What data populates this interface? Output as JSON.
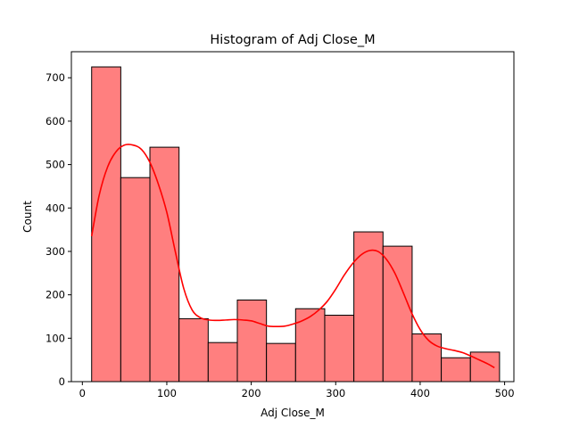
{
  "chart_data": {
    "type": "bar",
    "title": "Histogram of Adj Close_M",
    "xlabel": "Adj Close_M",
    "ylabel": "Count",
    "xlim": [
      -13,
      511
    ],
    "ylim": [
      0,
      760
    ],
    "xticks": [
      0,
      100,
      200,
      300,
      400,
      500
    ],
    "yticks": [
      0,
      100,
      200,
      300,
      400,
      500,
      600,
      700
    ],
    "grid": false,
    "bar_color": "#ff7f7f",
    "bar_edge_color": "#000000",
    "kde_color": "#ff0000",
    "bins": [
      {
        "x0": 11.0,
        "x1": 45.5,
        "count": 725
      },
      {
        "x0": 45.5,
        "x1": 80.0,
        "count": 470
      },
      {
        "x0": 80.0,
        "x1": 114.5,
        "count": 540
      },
      {
        "x0": 114.5,
        "x1": 149.0,
        "count": 145
      },
      {
        "x0": 149.0,
        "x1": 183.5,
        "count": 90
      },
      {
        "x0": 183.5,
        "x1": 218.0,
        "count": 188
      },
      {
        "x0": 218.0,
        "x1": 252.5,
        "count": 88
      },
      {
        "x0": 252.5,
        "x1": 287.0,
        "count": 168
      },
      {
        "x0": 287.0,
        "x1": 321.5,
        "count": 153
      },
      {
        "x0": 321.5,
        "x1": 356.0,
        "count": 345
      },
      {
        "x0": 356.0,
        "x1": 390.5,
        "count": 312
      },
      {
        "x0": 390.5,
        "x1": 425.0,
        "count": 110
      },
      {
        "x0": 425.0,
        "x1": 459.5,
        "count": 55
      },
      {
        "x0": 459.5,
        "x1": 494.0,
        "count": 68
      }
    ],
    "kde": {
      "x": [
        11,
        20,
        30,
        40,
        50,
        60,
        70,
        80,
        90,
        100,
        110,
        120,
        130,
        140,
        150,
        160,
        170,
        180,
        190,
        200,
        210,
        220,
        230,
        240,
        250,
        260,
        270,
        280,
        290,
        300,
        310,
        320,
        330,
        340,
        350,
        360,
        370,
        380,
        390,
        400,
        410,
        420,
        430,
        440,
        450,
        460,
        470,
        480,
        488
      ],
      "y": [
        335,
        430,
        495,
        530,
        545,
        545,
        535,
        505,
        455,
        390,
        300,
        215,
        165,
        147,
        142,
        141,
        142,
        143,
        142,
        140,
        134,
        128,
        127,
        128,
        133,
        140,
        150,
        165,
        185,
        213,
        245,
        272,
        292,
        302,
        300,
        282,
        250,
        205,
        158,
        120,
        95,
        82,
        76,
        72,
        67,
        59,
        50,
        41,
        32
      ]
    }
  }
}
